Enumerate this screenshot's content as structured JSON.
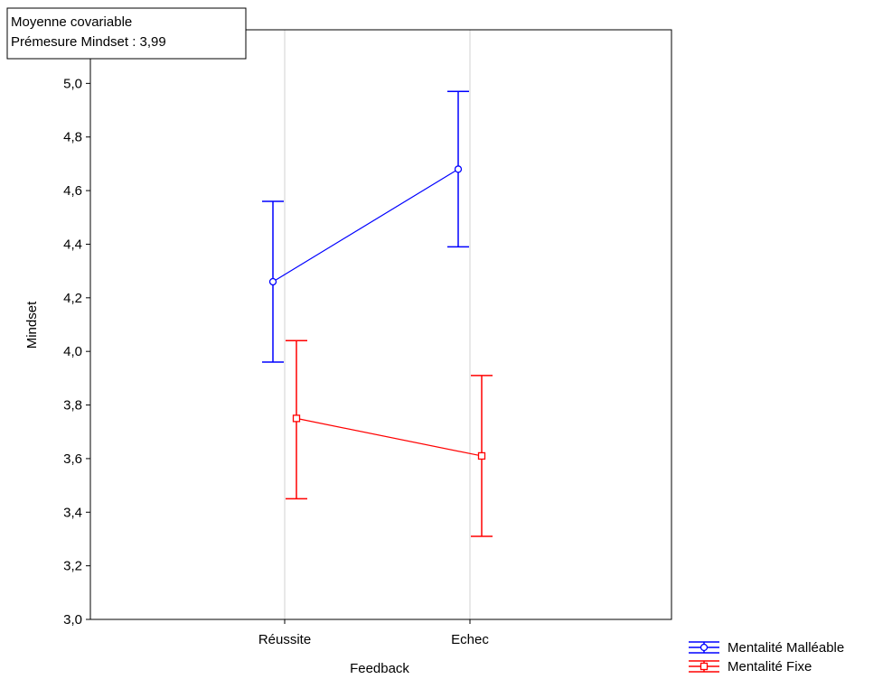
{
  "annotation": {
    "line1": "Moyenne covariable",
    "line2": "Prémesure Mindset : 3,99"
  },
  "chart_data": {
    "type": "line",
    "xlabel": "Feedback",
    "ylabel": "Mindset",
    "categories": [
      "Réussite",
      "Echec"
    ],
    "ylim": [
      3.0,
      5.2
    ],
    "yticks": [
      "3,0",
      "3,2",
      "3,4",
      "3,6",
      "3,8",
      "4,0",
      "4,2",
      "4,4",
      "4,6",
      "4,8",
      "5,0"
    ],
    "grid": true,
    "legend_position": "bottom-right",
    "series": [
      {
        "name": "Mentalité Malléable",
        "color": "#0000ff",
        "marker": "circle",
        "values": [
          4.26,
          4.68
        ],
        "err_low": [
          3.96,
          4.39
        ],
        "err_high": [
          4.56,
          4.97
        ]
      },
      {
        "name": "Mentalité Fixe",
        "color": "#ff0000",
        "marker": "square",
        "values": [
          3.75,
          3.61
        ],
        "err_low": [
          3.45,
          3.31
        ],
        "err_high": [
          4.04,
          3.91
        ]
      }
    ]
  }
}
